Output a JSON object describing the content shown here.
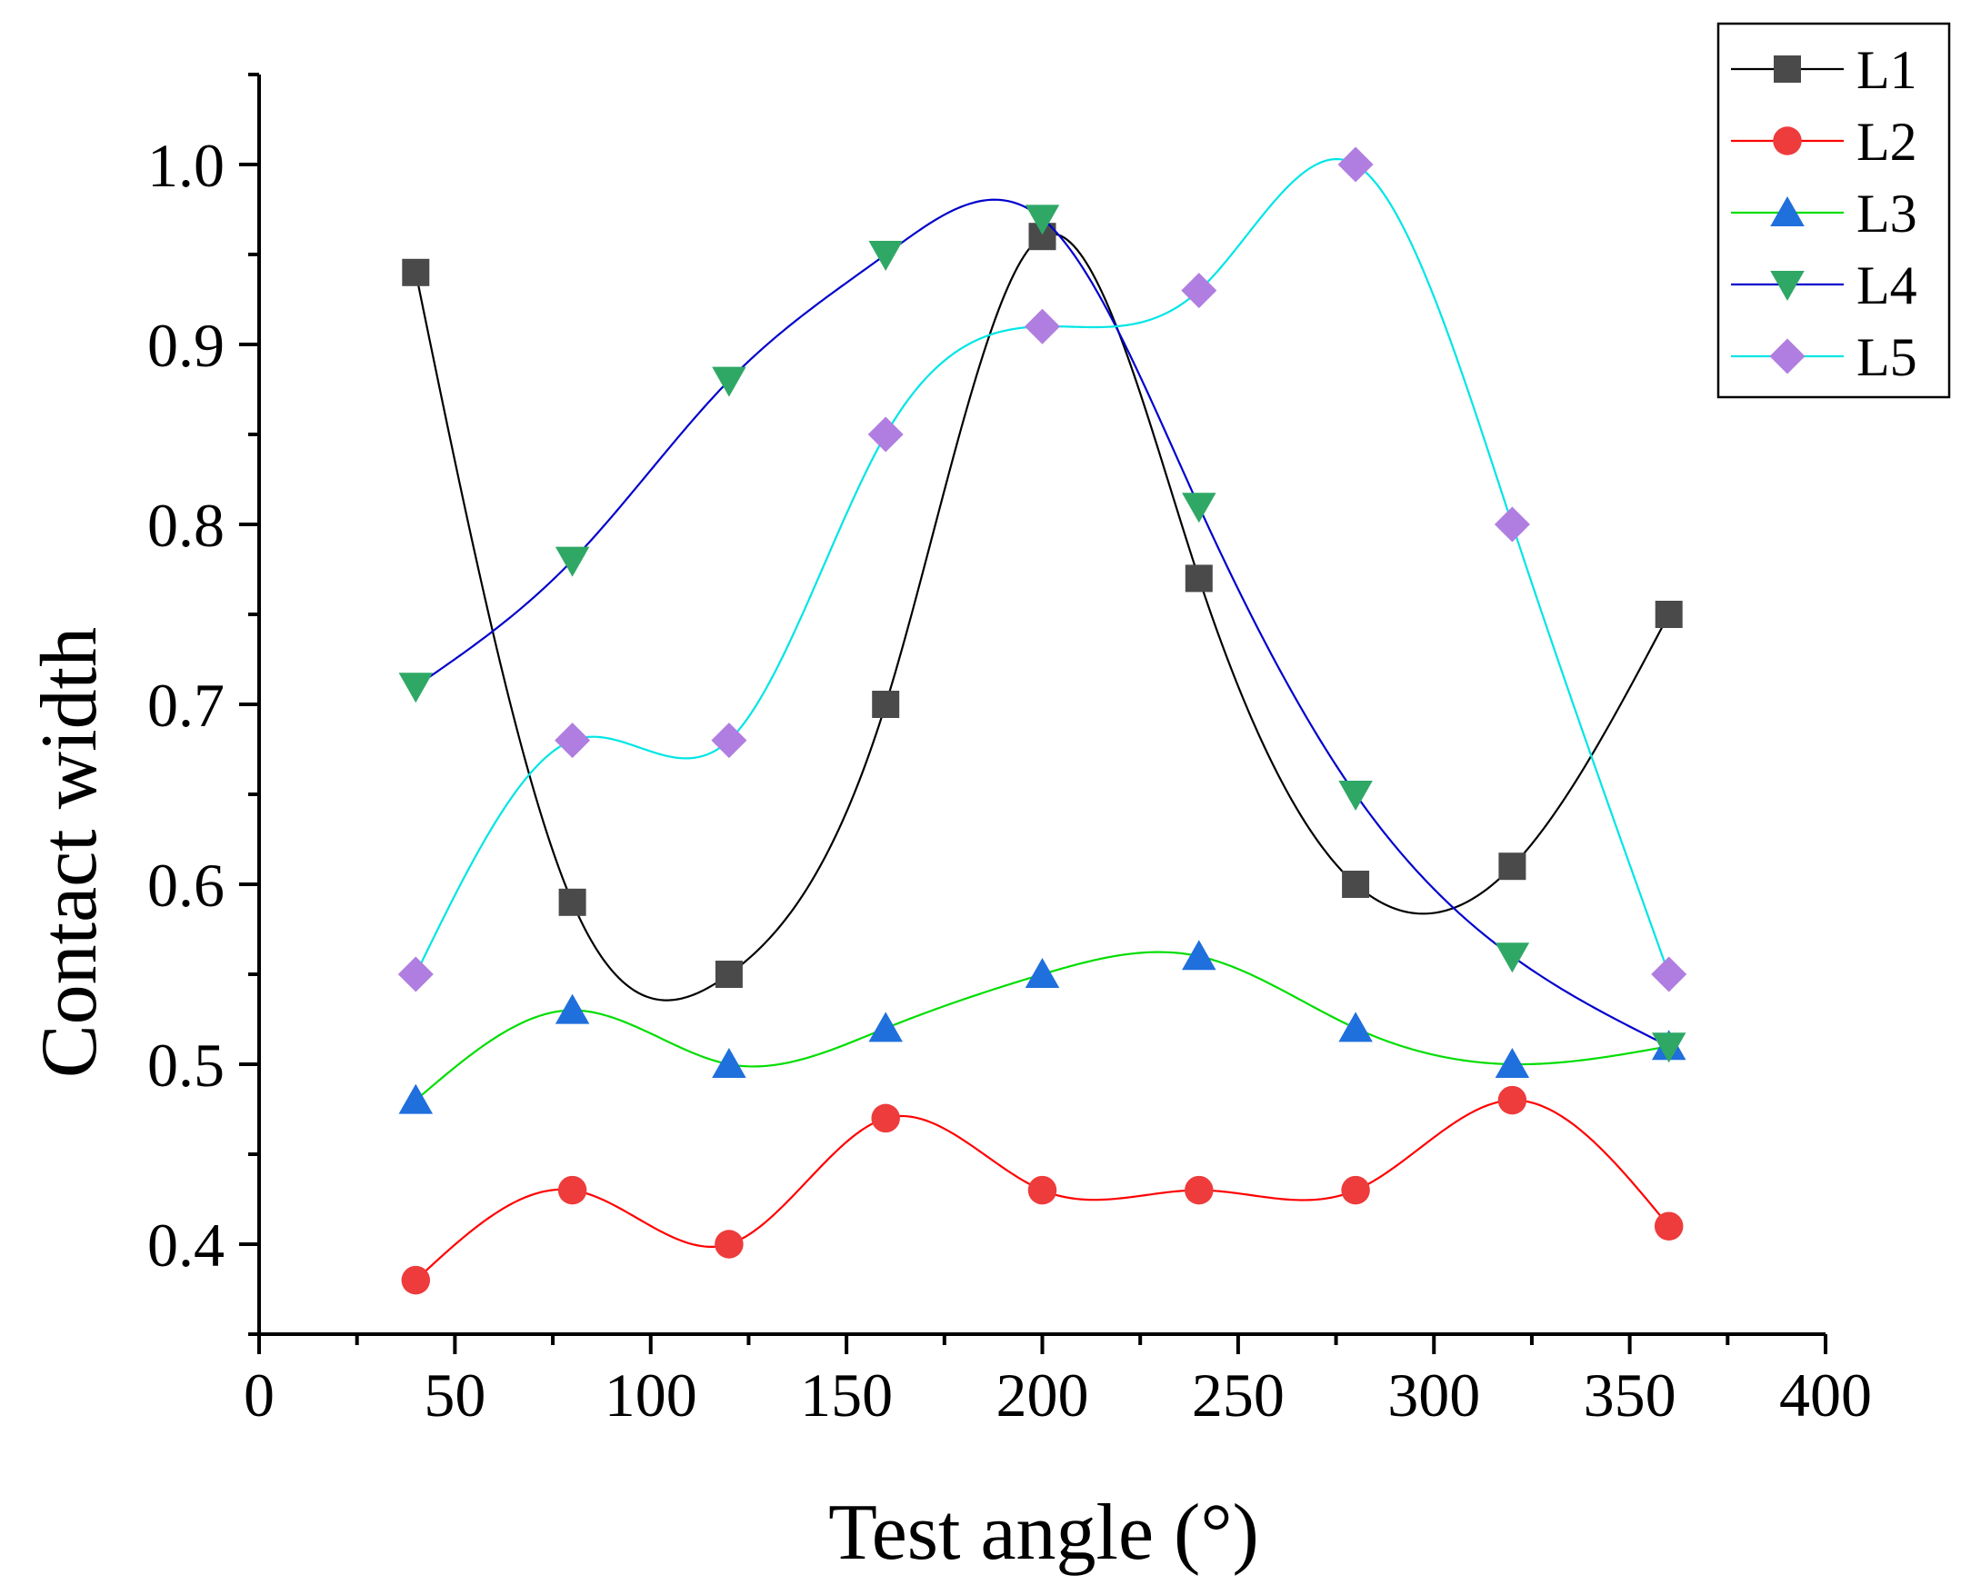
{
  "chart_data": {
    "type": "line",
    "xlabel": "Test angle (°)",
    "ylabel": "Contact width",
    "xlim": [
      0,
      400
    ],
    "ylim": [
      0.35,
      1.05
    ],
    "xticks": [
      0,
      50,
      100,
      150,
      200,
      250,
      300,
      350,
      400
    ],
    "xtick_labels": [
      "0",
      "50",
      "100",
      "150",
      "200",
      "250",
      "300",
      "350",
      "400"
    ],
    "yticks": [
      0.4,
      0.5,
      0.6,
      0.7,
      0.8,
      0.9,
      1.0
    ],
    "ytick_labels": [
      "0.4",
      "0.5",
      "0.6",
      "0.7",
      "0.8",
      "0.9",
      "1.0"
    ],
    "grid": false,
    "legend_position": "top-right",
    "x": [
      40,
      80,
      120,
      160,
      200,
      240,
      280,
      320,
      360
    ],
    "series": [
      {
        "name": "L1",
        "color": "#000000",
        "marker_color": "#4a4a4a",
        "marker": "square",
        "values": [
          0.94,
          0.59,
          0.55,
          0.7,
          0.96,
          0.77,
          0.6,
          0.61,
          0.75
        ]
      },
      {
        "name": "L2",
        "color": "#ff0000",
        "marker_color": "#ee3b3b",
        "marker": "circle",
        "values": [
          0.38,
          0.43,
          0.4,
          0.47,
          0.43,
          0.43,
          0.43,
          0.48,
          0.41
        ]
      },
      {
        "name": "L3",
        "color": "#00dd00",
        "marker_color": "#1f6fdd",
        "marker": "triangle-up",
        "values": [
          0.48,
          0.53,
          0.5,
          0.52,
          0.55,
          0.56,
          0.52,
          0.5,
          0.51
        ]
      },
      {
        "name": "L4",
        "color": "#0000cc",
        "marker_color": "#2fa866",
        "marker": "triangle-down",
        "values": [
          0.71,
          0.78,
          0.88,
          0.95,
          0.97,
          0.81,
          0.65,
          0.56,
          0.51
        ]
      },
      {
        "name": "L5",
        "color": "#00e5e5",
        "marker_color": "#b07ee0",
        "marker": "diamond",
        "values": [
          0.55,
          0.68,
          0.68,
          0.85,
          0.91,
          0.93,
          1.0,
          0.8,
          0.55
        ]
      }
    ]
  }
}
